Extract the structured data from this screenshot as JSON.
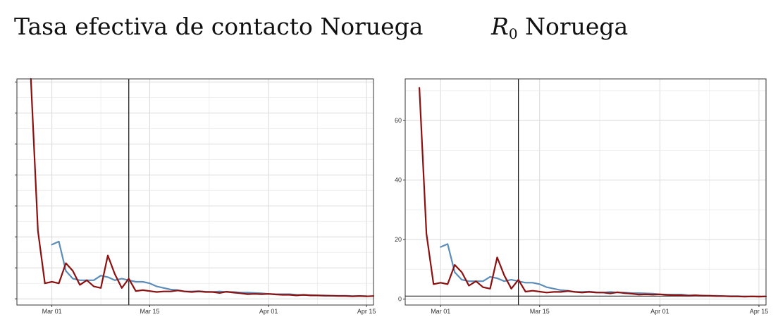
{
  "titles": {
    "left": "Tasa efectiva de contacto Noruega",
    "right_main": "R",
    "right_sub": "0",
    "right_rest": " Noruega"
  },
  "colors": {
    "red_series": "#8B1010",
    "blue_series": "#5B8DB8",
    "grid": "#d9d9d9",
    "panel_border": "#333333"
  },
  "chart_data": [
    {
      "type": "line",
      "title": "Tasa efectiva de contacto Noruega",
      "xlabel": "",
      "ylabel": "",
      "x_start": "2020-02-27",
      "x_ticks": [
        "Mar 01",
        "Mar 15",
        "Apr 01",
        "Apr 15"
      ],
      "x_tick_dates": [
        "2020-03-01",
        "2020-03-15",
        "2020-04-01",
        "2020-04-15"
      ],
      "x_range": [
        "2020-02-25",
        "2020-04-16"
      ],
      "y_ticks_labeled": false,
      "ylim": [
        -2,
        71
      ],
      "grid": true,
      "vline_date": "2020-03-12",
      "series": [
        {
          "values": [
            71,
            22,
            5,
            5.5,
            5,
            11.5,
            9,
            4.5,
            6,
            4,
            3.5,
            14,
            8,
            3.5,
            6.5,
            2.5,
            2.8,
            2.5,
            2.2,
            2.4,
            2.4,
            2.7,
            2.4,
            2.2,
            2.4,
            2.2,
            2.2,
            1.9,
            2.3,
            2.0,
            1.8,
            1.5,
            1.6,
            1.5,
            1.6,
            1.4,
            1.3,
            1.3,
            1.1,
            1.3,
            1.1,
            1.1,
            1.0,
            1.0,
            0.9,
            0.9,
            0.8,
            0.9,
            0.8,
            0.9
          ]
        },
        {
          "start_date": "2020-03-01",
          "values": [
            17.5,
            18.5,
            9,
            6.5,
            6,
            6,
            6,
            7.5,
            7,
            6,
            6.5,
            6,
            5.5,
            5.5,
            5,
            4,
            3.5,
            3,
            2.8,
            2.4,
            2.4,
            2.5,
            2.3,
            2.2,
            2.4,
            2.2,
            2.2,
            2.0,
            2.0,
            1.9,
            1.8,
            1.6,
            1.5,
            1.5,
            1.5,
            1.3,
            1.2,
            1.2,
            1.1,
            1.1,
            1.0,
            1.0,
            1.0,
            0.9,
            0.9,
            0.9
          ]
        }
      ]
    },
    {
      "type": "line",
      "title": "R0 Noruega",
      "xlabel": "",
      "ylabel": "",
      "x_start": "2020-02-27",
      "x_ticks": [
        "Mar 01",
        "Mar 15",
        "Apr 01",
        "Apr 15"
      ],
      "x_tick_dates": [
        "2020-03-01",
        "2020-03-15",
        "2020-04-01",
        "2020-04-15"
      ],
      "x_range": [
        "2020-02-25",
        "2020-04-16"
      ],
      "y_ticks": [
        0,
        20,
        40,
        60
      ],
      "ylim": [
        -2,
        74
      ],
      "grid": true,
      "vline_date": "2020-03-12",
      "hline_y": 1,
      "series": [
        {
          "values": [
            71,
            22,
            5,
            5.5,
            5,
            11.5,
            9,
            4.5,
            6,
            4,
            3.5,
            14,
            8,
            3.5,
            6.5,
            2.5,
            2.8,
            2.5,
            2.2,
            2.4,
            2.4,
            2.7,
            2.4,
            2.2,
            2.4,
            2.2,
            2.2,
            1.9,
            2.3,
            2.0,
            1.8,
            1.5,
            1.6,
            1.5,
            1.6,
            1.4,
            1.3,
            1.3,
            1.1,
            1.3,
            1.1,
            1.1,
            1.0,
            1.0,
            0.9,
            0.9,
            0.8,
            0.9,
            0.8,
            0.9
          ]
        },
        {
          "start_date": "2020-03-01",
          "values": [
            17.5,
            18.5,
            9,
            6.5,
            6,
            6,
            6,
            7.5,
            7,
            6,
            6.5,
            6,
            5.5,
            5.5,
            5,
            4,
            3.5,
            3,
            2.8,
            2.4,
            2.4,
            2.5,
            2.3,
            2.2,
            2.4,
            2.2,
            2.2,
            2.0,
            2.0,
            1.9,
            1.8,
            1.6,
            1.5,
            1.5,
            1.5,
            1.3,
            1.2,
            1.2,
            1.1,
            1.1,
            1.0,
            1.0,
            1.0,
            0.9,
            0.9,
            0.9
          ]
        }
      ]
    }
  ]
}
